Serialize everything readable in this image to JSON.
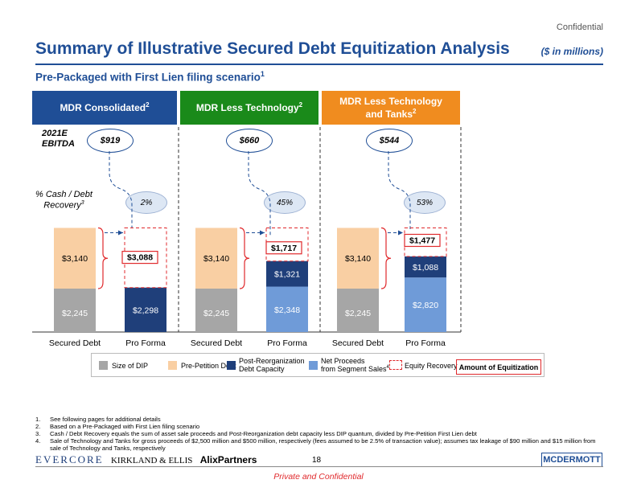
{
  "header": {
    "confidential": "Confidential",
    "title": "Summary of Illustrative Secured Debt Equitization Analysis",
    "units": "($ in millions)",
    "subtitle": "Pre-Packaged with First Lien filing scenario",
    "subtitle_sup": "1"
  },
  "scenarios": [
    {
      "title": "MDR Consolidated",
      "sup": "2",
      "ebitda": "$919",
      "recovery": "2%",
      "color": "#1f4e96"
    },
    {
      "title": "MDR Less Technology",
      "sup": "2",
      "ebitda": "$660",
      "recovery": "45%",
      "color": "#1a8a1a"
    },
    {
      "title": "MDR Less Technology and Tanks",
      "sup": "2",
      "ebitda": "$544",
      "recovery": "53%",
      "color": "#f08c1f"
    }
  ],
  "row_labels": {
    "ebitda_line1": "2021E",
    "ebitda_line2": "EBITDA",
    "recovery_line1": "% Cash / Debt",
    "recovery_line2": "Recovery",
    "recovery_sup": "3"
  },
  "chart_data": {
    "type": "bar",
    "stacked": true,
    "groups": [
      "MDR Consolidated",
      "MDR Less Technology",
      "MDR Less Technology and Tanks"
    ],
    "categories": [
      "Secured Debt",
      "Pro Forma",
      "Secured Debt",
      "Pro Forma",
      "Secured Debt",
      "Pro Forma"
    ],
    "series": [
      {
        "name": "Size of DIP",
        "color": "#a6a6a6",
        "values": [
          2245,
          null,
          2245,
          null,
          2245,
          null
        ],
        "labels": [
          "$2,245",
          null,
          "$2,245",
          null,
          "$2,245",
          null
        ]
      },
      {
        "name": "Pre-Petition Debt",
        "color": "#f9cfa3",
        "values": [
          3140,
          null,
          3140,
          null,
          3140,
          null
        ],
        "labels": [
          "$3,140",
          null,
          "$3,140",
          null,
          "$3,140",
          null
        ]
      },
      {
        "name": "Post-Reorganization Debt Capacity",
        "color": "#1f3f7a",
        "values": [
          null,
          2298,
          null,
          null,
          null,
          null
        ],
        "labels": [
          null,
          "$2,298",
          null,
          null,
          null,
          null
        ]
      },
      {
        "name": "Net Proceeds from Segment Sales",
        "color": "#6f9bd8",
        "values": [
          null,
          null,
          null,
          2348,
          null,
          2820
        ],
        "labels": [
          null,
          null,
          null,
          "$2,348",
          null,
          "$2,820"
        ]
      },
      {
        "name": "Post-Reorganization Debt Capacity",
        "color": "#1f3f7a",
        "values": [
          null,
          null,
          null,
          1321,
          null,
          1088
        ],
        "labels": [
          null,
          null,
          null,
          "$1,321",
          null,
          "$1,088"
        ]
      },
      {
        "name": "Equity Recovery",
        "color": "#e0292c",
        "values": [
          null,
          3088,
          null,
          1717,
          null,
          1477
        ],
        "labels": [
          null,
          "$3,088",
          null,
          "$1,717",
          null,
          "$1,477"
        ]
      }
    ],
    "legend": [
      {
        "label": "Size of DIP",
        "color": "#a6a6a6",
        "style": "solid"
      },
      {
        "label": "Pre-Petition Debt",
        "color": "#f9cfa3",
        "style": "solid"
      },
      {
        "label": "Post-Reorganization Debt Capacity",
        "color": "#1f3f7a",
        "style": "solid"
      },
      {
        "label": "Net Proceeds from Segment Sales",
        "sup": "4",
        "color": "#6f9bd8",
        "style": "solid"
      },
      {
        "label": "Equity Recovery",
        "color": "#e0292c",
        "style": "dashed"
      }
    ],
    "legend_line1": {
      "post_reorg": "Post-Reorganization",
      "net_proceeds": "Net Proceeds"
    },
    "legend_line2": {
      "post_reorg": "Debt Capacity",
      "net_proceeds": "from Segment Sales"
    },
    "amount_label": "Amount of Equitization"
  },
  "footnotes": [
    {
      "n": "1.",
      "text": "See following pages for additional details"
    },
    {
      "n": "2.",
      "text": "Based on a Pre-Packaged with First Lien filing scenario"
    },
    {
      "n": "3.",
      "text": "Cash / Debt Recovery equals the sum of asset sale proceeds and Post-Reorganization debt capacity less DIP quantum, divided by Pre-Petition First Lien debt"
    },
    {
      "n": "4.",
      "text": "Sale of Technology and Tanks for gross proceeds of $2,500 million and $500 million, respectively (fees assumed to be 2.5% of transaction value); assumes tax leakage of $90 million and $15 million from sale of Technology and Tanks, respectively"
    }
  ],
  "footer": {
    "evercore": "EVERCORE",
    "kirkland": "KIRKLAND & ELLIS",
    "alix": "AlixPartners",
    "page": "18",
    "mcdermott": "MCDERMOTT",
    "private": "Private and Confidential"
  }
}
